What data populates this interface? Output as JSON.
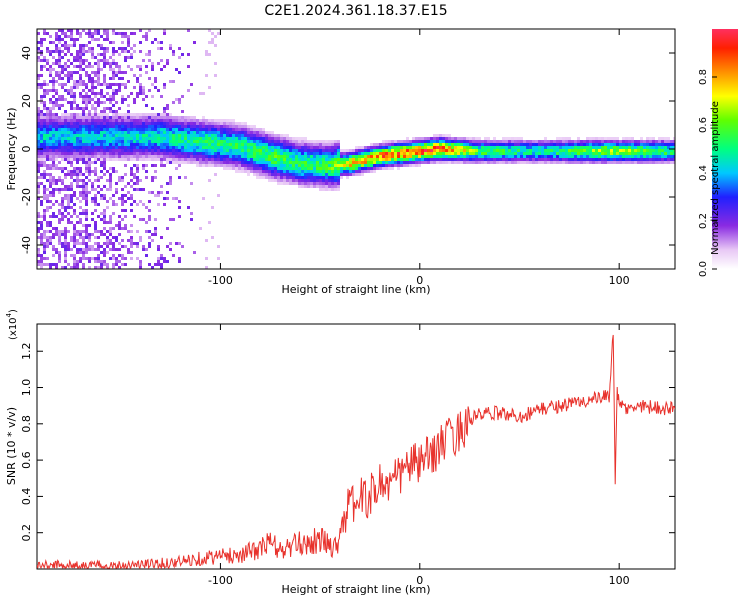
{
  "title": "C2E1.2024.361.18.37.E15",
  "chart_data": [
    {
      "type": "heatmap",
      "xlabel": "Height of straight line (km)",
      "ylabel": "Frequency (Hz)",
      "xlim": [
        -192,
        128
      ],
      "ylim": [
        -50,
        50
      ],
      "xticks": [
        -100,
        0,
        100
      ],
      "yticks": [
        -40,
        -20,
        0,
        20,
        40
      ],
      "colorbar": {
        "label": "Normalized spectral amplitude",
        "range": [
          0.0,
          1.0
        ],
        "ticks": [
          0.0,
          0.2,
          0.4,
          0.6,
          0.8
        ]
      },
      "ridge": [
        {
          "x": -150,
          "freq": 5,
          "amp": 0.45
        },
        {
          "x": -130,
          "freq": 5,
          "amp": 0.5
        },
        {
          "x": -110,
          "freq": 3,
          "amp": 0.55
        },
        {
          "x": -90,
          "freq": 1,
          "amp": 0.55
        },
        {
          "x": -75,
          "freq": -3,
          "amp": 0.6
        },
        {
          "x": -60,
          "freq": -6,
          "amp": 0.55
        },
        {
          "x": -45,
          "freq": -7,
          "amp": 0.6
        },
        {
          "x": -35,
          "freq": -6,
          "amp": 0.85
        },
        {
          "x": -20,
          "freq": -3,
          "amp": 0.9
        },
        {
          "x": 0,
          "freq": -1,
          "amp": 0.95
        },
        {
          "x": 10,
          "freq": 0,
          "amp": 0.95
        },
        {
          "x": 30,
          "freq": -1,
          "amp": 0.6
        },
        {
          "x": 60,
          "freq": -1,
          "amp": 0.5
        },
        {
          "x": 95,
          "freq": -1,
          "amp": 0.7
        },
        {
          "x": 128,
          "freq": -1,
          "amp": 0.55
        }
      ]
    },
    {
      "type": "line",
      "xlabel": "Height of straight line (km)",
      "ylabel": "SNR (10 * v/v)",
      "y_multiplier": "(x10",
      "y_multiplier_exp": "4",
      "y_multiplier_close": ")",
      "xlim": [
        -192,
        128
      ],
      "ylim": [
        0.0,
        1.35
      ],
      "xticks": [
        -100,
        0,
        100
      ],
      "yticks": [
        0.2,
        0.4,
        0.6,
        0.8,
        1.0,
        1.2
      ],
      "series": [
        {
          "name": "SNR",
          "color": "#e8322c",
          "x": [
            -192,
            -170,
            -150,
            -130,
            -120,
            -110,
            -100,
            -90,
            -80,
            -75,
            -70,
            -60,
            -50,
            -42,
            -38,
            -32,
            -25,
            -20,
            -15,
            -10,
            -5,
            0,
            5,
            10,
            15,
            20,
            25,
            30,
            40,
            50,
            60,
            70,
            80,
            90,
            95,
            97,
            98,
            99,
            100,
            105,
            110,
            120,
            128
          ],
          "values": [
            0.02,
            0.02,
            0.02,
            0.03,
            0.04,
            0.06,
            0.07,
            0.08,
            0.11,
            0.15,
            0.1,
            0.14,
            0.16,
            0.12,
            0.3,
            0.38,
            0.4,
            0.48,
            0.46,
            0.52,
            0.58,
            0.58,
            0.62,
            0.68,
            0.72,
            0.76,
            0.82,
            0.85,
            0.86,
            0.84,
            0.88,
            0.9,
            0.92,
            0.94,
            0.95,
            1.32,
            0.5,
            0.97,
            0.9,
            0.88,
            0.9,
            0.89,
            0.88
          ]
        }
      ]
    }
  ]
}
